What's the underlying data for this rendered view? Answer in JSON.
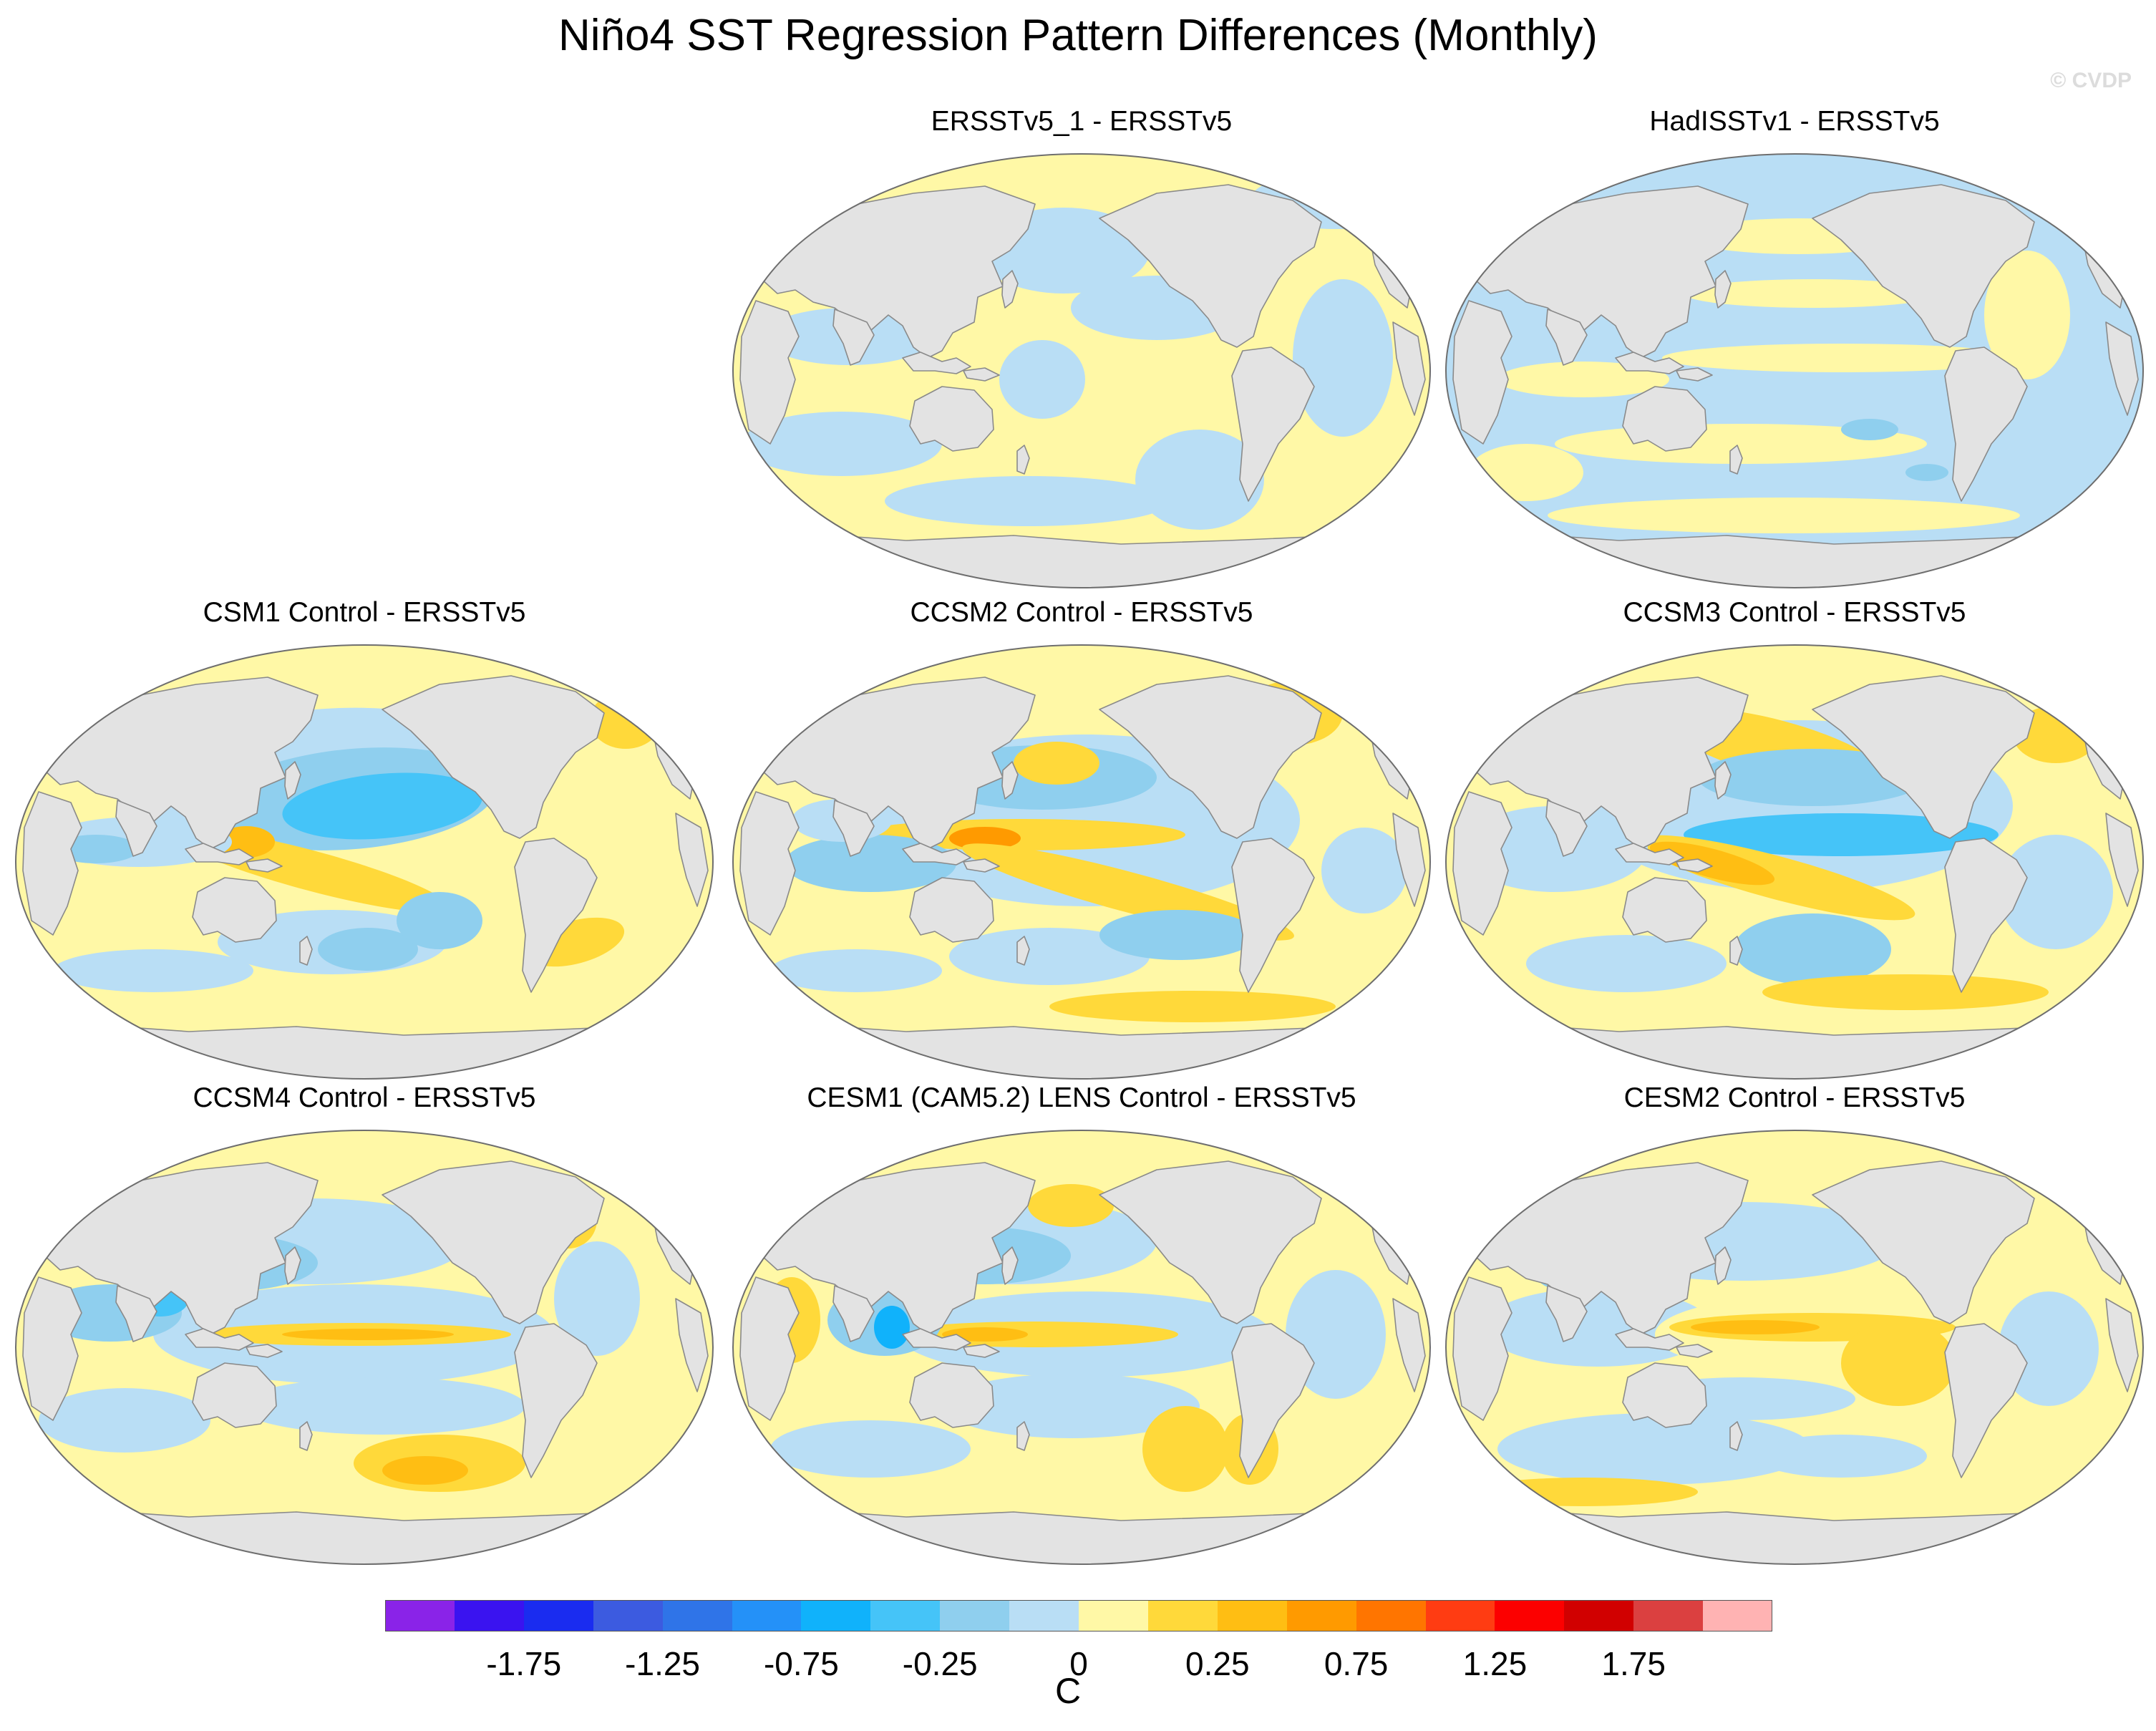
{
  "title": "Niño4 SST Regression Pattern Differences (Monthly)",
  "watermark": "© CVDP",
  "colors": {
    "land": "#e3e3e3",
    "coast": "#8a8a8a",
    "scale": [
      "#8a23e8",
      "#3a13f0",
      "#1a2cf0",
      "#3c5be0",
      "#2f74e8",
      "#2491f8",
      "#10b2fb",
      "#45c4f8",
      "#8fcfee",
      "#b9def5",
      "#fff8a6",
      "#ffd93a",
      "#ffbe13",
      "#ff9a00",
      "#ff7500",
      "#ff3c12",
      "#fc0000",
      "#d10000",
      "#db4040",
      "#ffb3b3"
    ]
  },
  "panels": [
    {
      "id": "p1",
      "title": "ERSSTv5_1 - ERSSTv5",
      "pattern": "ersst"
    },
    {
      "id": "p2",
      "title": "HadISSTv1 - ERSSTv5",
      "pattern": "hadisst"
    },
    {
      "id": "p3",
      "title": "CSM1 Control - ERSSTv5",
      "pattern": "csm1"
    },
    {
      "id": "p4",
      "title": "CCSM2 Control - ERSSTv5",
      "pattern": "ccsm2"
    },
    {
      "id": "p5",
      "title": "CCSM3 Control - ERSSTv5",
      "pattern": "ccsm3"
    },
    {
      "id": "p6",
      "title": "CCSM4 Control - ERSSTv5",
      "pattern": "ccsm4"
    },
    {
      "id": "p7",
      "title": "CESM1 (CAM5.2) LENS Control - ERSSTv5",
      "pattern": "cesm1"
    },
    {
      "id": "p8",
      "title": "CESM2 Control - ERSSTv5",
      "pattern": "cesm2"
    }
  ],
  "colorbar": {
    "ticks": [
      "-1.75",
      "-1.25",
      "-0.75",
      "-0.25",
      "0",
      "0.25",
      "0.75",
      "1.25",
      "1.75"
    ],
    "unit": "C"
  }
}
